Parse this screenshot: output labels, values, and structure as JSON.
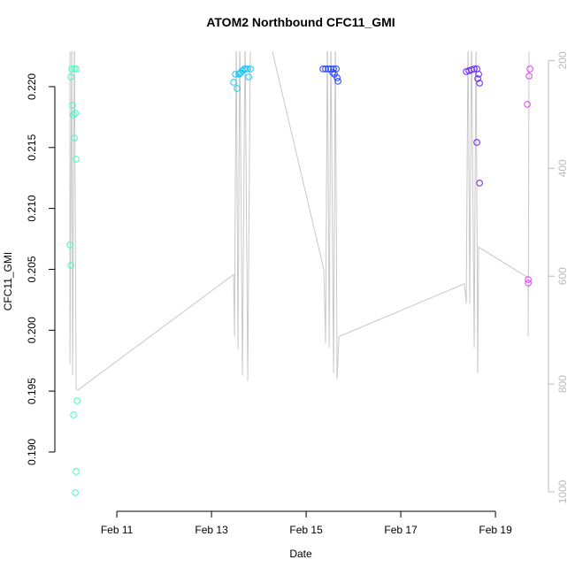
{
  "chart_data": {
    "type": "scatter",
    "title": "ATOM2 Northbound CFC11_GMI",
    "x_label": "Date",
    "y_label": "CFC11_GMI",
    "xlim": [
      9.69,
      20.12
    ],
    "xticks": [
      {
        "value": 11,
        "label": "Feb 11"
      },
      {
        "value": 13,
        "label": "Feb 13"
      },
      {
        "value": 15,
        "label": "Feb 15"
      },
      {
        "value": 17,
        "label": "Feb 17"
      },
      {
        "value": 19,
        "label": "Feb 19"
      }
    ],
    "ylim": [
      0.18513,
      0.2229
    ],
    "yticks": [
      {
        "value": 0.19,
        "label": "0.190"
      },
      0.195,
      {
        "value": 0.2,
        "label": "0.200"
      },
      0.205,
      {
        "value": 0.21,
        "label": "0.210"
      },
      0.215,
      {
        "value": 0.22,
        "label": "0.220"
      }
    ],
    "y2lim": [
      1036,
      183
    ],
    "y2ticks": [
      200,
      400,
      600,
      800,
      1000
    ],
    "series": [
      {
        "type": "line",
        "axis": "y2",
        "color": "#c8c8c8",
        "x": [
          10.009,
          10.009,
          10.047,
          10.065,
          10.103,
          10.14,
          10.178,
          13.467,
          13.486,
          13.523,
          13.561,
          13.598,
          13.654,
          13.71,
          13.766,
          13.822,
          14.196,
          15.374,
          15.411,
          15.449,
          15.486,
          15.523,
          15.579,
          15.617,
          15.654,
          15.692,
          18.346,
          18.383,
          18.421,
          18.458,
          18.495,
          18.551,
          18.589,
          18.626,
          18.645,
          19.692,
          19.692,
          19.71
        ],
        "values": [
          150,
          763,
          150,
          784,
          150,
          809,
          811,
          597,
          712,
          150,
          736,
          150,
          784,
          150,
          794,
          150,
          150,
          588,
          724,
          150,
          733,
          150,
          780,
          150,
          792,
          712,
          614,
          651,
          150,
          651,
          150,
          733,
          150,
          780,
          546,
          603,
          712,
          150
        ]
      },
      {
        "color": "#40ffb8",
        "x": [
          10.047,
          10.103,
          10.14,
          10.028,
          10.065,
          10.084,
          10.121,
          10.103,
          10.14,
          10.009,
          10.028,
          10.084,
          10.159,
          10.14,
          10.121
        ],
        "values": [
          0.22145,
          0.22145,
          0.22145,
          0.2208,
          0.21847,
          0.21768,
          0.21782,
          0.21579,
          0.21404,
          0.207,
          0.20533,
          0.19305,
          0.19421,
          0.1884,
          0.18666
        ]
      },
      {
        "color": "#1ac8f5",
        "x": [
          13.467,
          13.505,
          13.542,
          13.579,
          13.617,
          13.654,
          13.692,
          13.729,
          13.766,
          13.822,
          13.785,
          13.598
        ],
        "values": [
          0.22036,
          0.22102,
          0.21985,
          0.22102,
          0.22116,
          0.22131,
          0.22145,
          0.22145,
          0.22145,
          0.22145,
          0.2208,
          0.22109
        ]
      },
      {
        "color": "#2040ff",
        "x": [
          15.355,
          15.411,
          15.467,
          15.523,
          15.579,
          15.636,
          15.598,
          15.654,
          15.673,
          15.561
        ],
        "values": [
          0.22145,
          0.22145,
          0.22145,
          0.22145,
          0.22145,
          0.22145,
          0.22102,
          0.22073,
          0.22044,
          0.22116
        ]
      },
      {
        "color": "#6a20f0",
        "x": [
          18.383,
          18.439,
          18.495,
          18.551,
          18.607,
          18.645,
          18.626,
          18.664,
          18.607,
          18.664
        ],
        "values": [
          0.22123,
          0.22131,
          0.22138,
          0.22145,
          0.22145,
          0.22102,
          0.22065,
          0.22029,
          0.21542,
          0.21208
        ]
      },
      {
        "color": "#e040f0",
        "x": [
          19.729,
          19.71,
          19.673,
          19.692,
          19.692
        ],
        "values": [
          0.22145,
          0.22087,
          0.21855,
          0.20416,
          0.20387
        ]
      }
    ]
  }
}
